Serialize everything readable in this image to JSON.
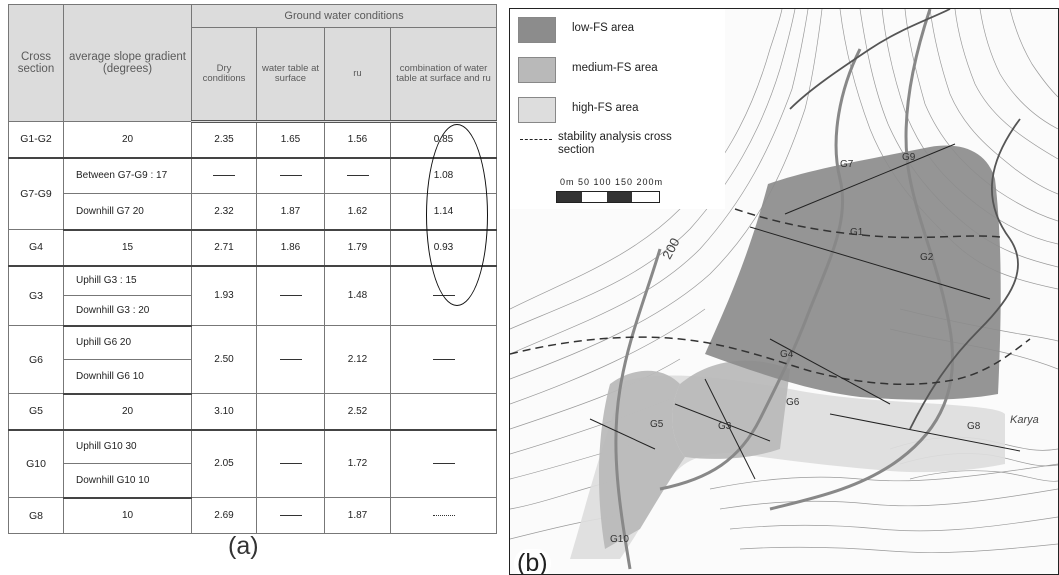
{
  "table": {
    "header": {
      "cross_section": "Cross section",
      "slope": "average slope gradient (degrees)",
      "group": "Ground water conditions",
      "dry": "Dry conditions",
      "water_table": "water table at surface",
      "ru": "ru",
      "combination": "combination of water table at surface and ru"
    },
    "rows": {
      "g1g2": {
        "section": "G1-G2",
        "slope": "20",
        "dry": "2.35",
        "wt": "1.65",
        "ru": "1.56",
        "combo": "0.85"
      },
      "g7g9": {
        "section": "G7-G9",
        "sub1": {
          "slope": "Between G7-G9 : 17",
          "dry": "",
          "wt": "",
          "ru": "",
          "combo": "1.08"
        },
        "sub2": {
          "slope": "Downhill G7   20",
          "dry": "2.32",
          "wt": "1.87",
          "ru": "1.62",
          "combo": "1.14"
        }
      },
      "g4": {
        "section": "G4",
        "slope": "15",
        "dry": "2.71",
        "wt": "1.86",
        "ru": "1.79",
        "combo": "0.93"
      },
      "g3": {
        "section": "G3",
        "slope1": "Uphill G3 : 15",
        "slope2": "Downhill G3 : 20",
        "dry": "1.93",
        "ru": "1.48"
      },
      "g6": {
        "section": "G6",
        "slope1": "Uphill G6   20",
        "slope2": "Downhill G6   10",
        "dry": "2.50",
        "ru": "2.12"
      },
      "g5": {
        "section": "G5",
        "slope": "20",
        "dry": "3.10",
        "ru": "2.52"
      },
      "g10": {
        "section": "G10",
        "slope1": "Uphill G10   30",
        "slope2": "Downhill G10   10",
        "dry": "2.05",
        "ru": "1.72"
      },
      "g8": {
        "section": "G8",
        "slope": "10",
        "dry": "2.69",
        "ru": "1.87"
      }
    }
  },
  "panel_a_label": "(a)",
  "panel_b_label": "(b)",
  "map": {
    "legend": {
      "low": "low-FS area",
      "medium": "medium-FS area",
      "high": "high-FS area",
      "line": "stability analysis cross section",
      "scale": "0m  50   100  150   200m"
    },
    "colors": {
      "low": "#8c8c8c",
      "medium": "#b9b9b9",
      "high": "#dddddd"
    },
    "section_labels": {
      "G7": "G7",
      "G9": "G9",
      "G1": "G1",
      "G2": "G2",
      "G4": "G4",
      "G6": "G6",
      "G3": "G3",
      "G5": "G5",
      "G8": "G8",
      "G10": "G10"
    },
    "elevation": "200",
    "place": "Karya"
  }
}
